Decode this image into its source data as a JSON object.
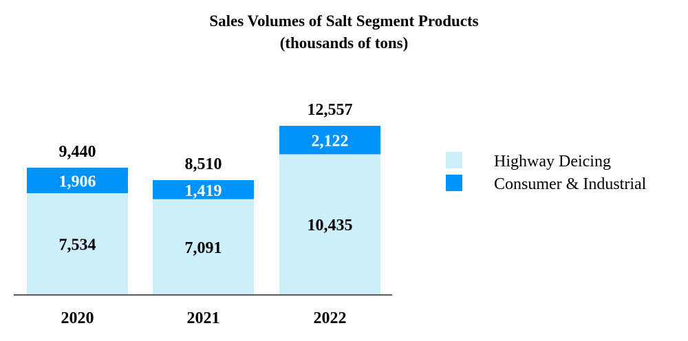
{
  "chart_data": {
    "type": "bar",
    "stacked": true,
    "title": "Sales Volumes of Salt Segment Products",
    "subtitle": "(thousands of tons)",
    "categories": [
      "2020",
      "2021",
      "2022"
    ],
    "series": [
      {
        "name": "Highway Deicing",
        "values": [
          7534,
          7091,
          10435
        ],
        "labels": [
          "7,534",
          "7,091",
          "10,435"
        ],
        "color": "#cdeefb"
      },
      {
        "name": "Consumer & Industrial",
        "values": [
          1906,
          1419,
          2122
        ],
        "labels": [
          "1,906",
          "1,419",
          "2,122"
        ],
        "color": "#0093fb"
      }
    ],
    "totals": [
      9440,
      8510,
      12557
    ],
    "total_labels": [
      "9,440",
      "8,510",
      "12,557"
    ],
    "xlabel": "",
    "ylabel": "",
    "ylim": [
      0,
      13000
    ],
    "grid": false,
    "legend_position": "right"
  }
}
